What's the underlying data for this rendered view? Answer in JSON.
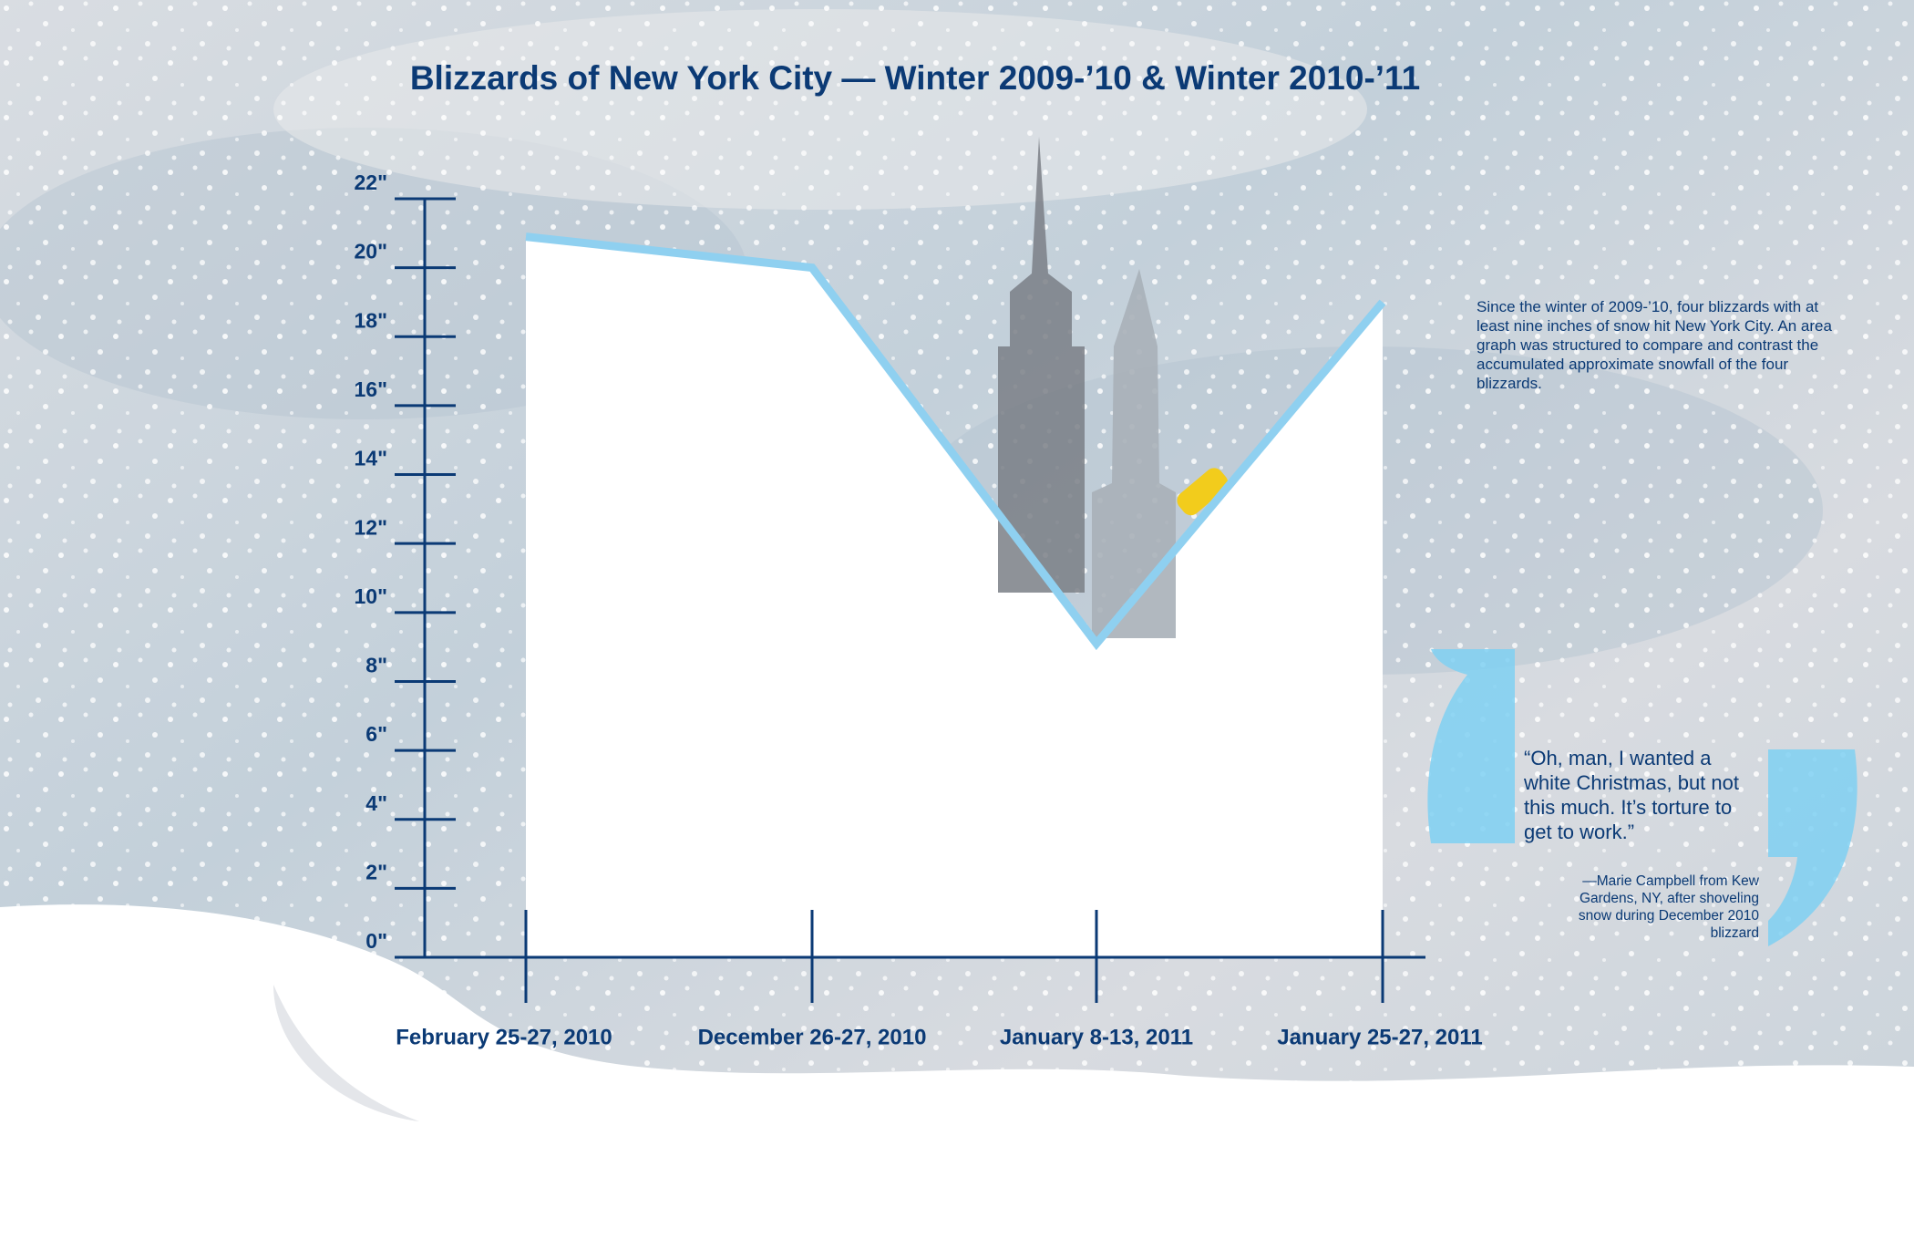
{
  "chart_data": {
    "type": "area",
    "title": "Blizzards of New York City — Winter 2009-’10 & Winter 2010-’11",
    "categories": [
      "February 25-27, 2010",
      "December 26-27, 2010",
      "January 8-13, 2011",
      "January 25-27, 2011"
    ],
    "values": [
      20.9,
      20.0,
      9.1,
      19.0
    ],
    "color": "#ffffff",
    "line_color": "#8fd0f0",
    "ylim": [
      0,
      22
    ],
    "yticks": [
      {
        "value": 0,
        "label": "0\""
      },
      {
        "value": 2,
        "label": "2\""
      },
      {
        "value": 4,
        "label": "4\""
      },
      {
        "value": 6,
        "label": "6\""
      },
      {
        "value": 8,
        "label": "8\""
      },
      {
        "value": 10,
        "label": "10\""
      },
      {
        "value": 12,
        "label": "12\""
      },
      {
        "value": 14,
        "label": "14\""
      },
      {
        "value": 16,
        "label": "16\""
      },
      {
        "value": 18,
        "label": "18\""
      },
      {
        "value": 20,
        "label": "20\""
      },
      {
        "value": 22,
        "label": "22\""
      }
    ],
    "description": "Since the winter of 2009-’10, four blizzards with at least nine inches of snow hit New York City. An area graph was structured to compare and contrast the accumulated approximate snowfall of the four blizzards.",
    "quote": "“Oh, man, I wanted a white Christmas, but not this much. It’s torture to get to work.”",
    "attribution": "—Marie Campbell from Kew Gardens, NY, after shoveling snow during December 2010 blizzard"
  }
}
